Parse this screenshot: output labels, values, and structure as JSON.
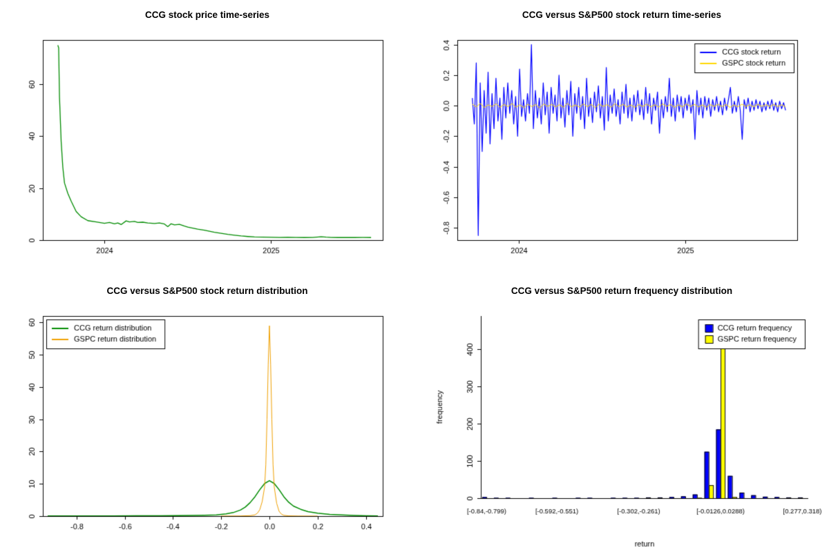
{
  "page": {
    "background": "#ffffff"
  },
  "chart_data": [
    {
      "type": "line",
      "title": "CCG stock price time-series",
      "xlim": [
        2023.63,
        2025.67
      ],
      "ylim": [
        0,
        77
      ],
      "xtick_values": [
        2024,
        2025
      ],
      "xtick_labels": [
        "2024",
        "2025"
      ],
      "ytick_values": [
        0,
        20,
        40,
        60
      ],
      "ytick_labels": [
        "0",
        "20",
        "40",
        "60"
      ],
      "box": true,
      "series": [
        {
          "name": "CCG stock price",
          "color": "#008B00",
          "width": 1.3,
          "points": [
            [
              2023.72,
              75
            ],
            [
              2023.725,
              74
            ],
            [
              2023.73,
              55
            ],
            [
              2023.74,
              38
            ],
            [
              2023.75,
              28
            ],
            [
              2023.76,
              22
            ],
            [
              2023.78,
              18
            ],
            [
              2023.8,
              15
            ],
            [
              2023.83,
              11
            ],
            [
              2023.86,
              9
            ],
            [
              2023.9,
              7.5
            ],
            [
              2023.95,
              7
            ],
            [
              2024.0,
              6.5
            ],
            [
              2024.03,
              6.8
            ],
            [
              2024.06,
              6.3
            ],
            [
              2024.08,
              6.6
            ],
            [
              2024.1,
              6.0
            ],
            [
              2024.13,
              7.4
            ],
            [
              2024.15,
              7.0
            ],
            [
              2024.18,
              7.2
            ],
            [
              2024.2,
              6.8
            ],
            [
              2024.23,
              6.9
            ],
            [
              2024.26,
              6.6
            ],
            [
              2024.3,
              6.4
            ],
            [
              2024.33,
              6.6
            ],
            [
              2024.36,
              6.2
            ],
            [
              2024.38,
              5.2
            ],
            [
              2024.4,
              6.3
            ],
            [
              2024.42,
              5.9
            ],
            [
              2024.45,
              6.1
            ],
            [
              2024.48,
              5.4
            ],
            [
              2024.5,
              5.0
            ],
            [
              2024.53,
              4.6
            ],
            [
              2024.56,
              4.2
            ],
            [
              2024.6,
              3.8
            ],
            [
              2024.63,
              3.4
            ],
            [
              2024.66,
              3.0
            ],
            [
              2024.7,
              2.6
            ],
            [
              2024.74,
              2.2
            ],
            [
              2024.78,
              1.9
            ],
            [
              2024.82,
              1.6
            ],
            [
              2024.86,
              1.4
            ],
            [
              2024.9,
              1.25
            ],
            [
              2024.95,
              1.15
            ],
            [
              2025.0,
              1.1
            ],
            [
              2025.05,
              1.05
            ],
            [
              2025.1,
              1.1
            ],
            [
              2025.15,
              1.05
            ],
            [
              2025.2,
              1.0
            ],
            [
              2025.25,
              1.05
            ],
            [
              2025.3,
              1.3
            ],
            [
              2025.33,
              1.15
            ],
            [
              2025.36,
              1.05
            ],
            [
              2025.4,
              1.0
            ],
            [
              2025.45,
              1.05
            ],
            [
              2025.5,
              1.0
            ],
            [
              2025.55,
              1.02
            ],
            [
              2025.6,
              1.0
            ]
          ]
        }
      ]
    },
    {
      "type": "line",
      "title": "CCG versus S&P500 stock return time-series",
      "xlim": [
        2023.63,
        2025.67
      ],
      "ylim": [
        -0.88,
        0.43
      ],
      "xtick_values": [
        2024,
        2025
      ],
      "xtick_labels": [
        "2024",
        "2025"
      ],
      "ytick_values": [
        -0.8,
        -0.6,
        -0.4,
        -0.2,
        0.0,
        0.2,
        0.4
      ],
      "ytick_labels": [
        "-0.8",
        "-0.6",
        "-0.4",
        "-0.2",
        "0.0",
        "0.2",
        "0.4"
      ],
      "box": true,
      "legend": {
        "position": "top-right"
      },
      "series": [
        {
          "name": "CCG stock return",
          "color": "#0000FF",
          "width": 1.2,
          "x_start": 2023.72,
          "x_end": 2025.6,
          "values": [
            0.05,
            -0.12,
            0.28,
            -0.85,
            0.15,
            -0.3,
            0.1,
            -0.18,
            0.22,
            -0.25,
            0.08,
            -0.15,
            0.18,
            -0.1,
            0.05,
            -0.22,
            0.12,
            -0.08,
            0.15,
            -0.05,
            0.1,
            -0.12,
            0.06,
            -0.2,
            0.24,
            -0.07,
            0.04,
            -0.1,
            0.08,
            -0.05,
            0.4,
            -0.15,
            0.1,
            -0.08,
            0.05,
            -0.12,
            0.15,
            -0.06,
            0.09,
            -0.18,
            0.12,
            -0.05,
            0.07,
            -0.1,
            0.2,
            -0.08,
            0.05,
            -0.14,
            0.1,
            -0.06,
            0.16,
            -0.2,
            0.08,
            -0.05,
            0.12,
            -0.09,
            0.06,
            -0.15,
            0.18,
            -0.07,
            0.05,
            -0.11,
            0.09,
            -0.04,
            0.13,
            -0.08,
            0.06,
            -0.16,
            0.25,
            -0.1,
            0.07,
            -0.05,
            0.11,
            -0.07,
            0.04,
            -0.12,
            0.09,
            -0.05,
            0.14,
            -0.08,
            0.05,
            -0.1,
            0.07,
            -0.04,
            0.1,
            -0.06,
            0.04,
            -0.09,
            0.12,
            -0.05,
            0.08,
            -0.12,
            0.05,
            -0.03,
            0.09,
            -0.18,
            0.04,
            -0.08,
            0.06,
            -0.04,
            0.18,
            -0.07,
            0.05,
            -0.1,
            0.07,
            -0.04,
            0.06,
            -0.08,
            0.05,
            -0.03,
            0.07,
            -0.05,
            0.04,
            -0.22,
            0.1,
            -0.06,
            0.05,
            -0.08,
            0.06,
            -0.03,
            0.05,
            -0.07,
            0.04,
            -0.03,
            0.06,
            -0.04,
            0.03,
            -0.06,
            0.05,
            -0.03,
            0.04,
            0.12,
            -0.05,
            0.03,
            -0.04,
            0.06,
            -0.03,
            -0.22,
            0.04,
            -0.02,
            0.05,
            -0.04,
            0.03,
            -0.03,
            0.04,
            -0.02,
            0.03,
            -0.04,
            0.02,
            -0.03,
            0.03,
            -0.02,
            0.04,
            -0.03,
            0.02,
            -0.04,
            0.03,
            -0.02,
            0.02,
            -0.03
          ]
        },
        {
          "name": "GSPC stock return",
          "color": "#FFD700",
          "width": 1,
          "x_start": 2023.72,
          "x_end": 2025.6,
          "values": [
            0.01,
            -0.008,
            0.015,
            -0.012,
            0.006,
            -0.005,
            0.012,
            -0.01,
            0.008,
            -0.006,
            0.014,
            -0.009,
            0.005,
            -0.012,
            0.01,
            -0.006,
            0.008,
            -0.015,
            0.012,
            -0.005,
            0.009,
            -0.008,
            0.006,
            -0.01,
            0.015,
            -0.007,
            0.005,
            -0.009,
            0.012,
            -0.006,
            0.008,
            -0.012,
            0.01,
            -0.005,
            0.007,
            -0.01,
            0.013,
            -0.006,
            0.009,
            -0.008,
            0.005,
            -0.011,
            0.008,
            -0.005,
            0.01,
            -0.007,
            0.006,
            -0.009,
            0.012,
            -0.005,
            0.008,
            -0.01,
            0.006,
            -0.007,
            0.011,
            -0.005,
            0.009,
            -0.008,
            0.005,
            -0.01,
            0.007,
            -0.005,
            0.009,
            -0.006,
            0.008,
            -0.011,
            0.005,
            -0.007,
            0.01,
            -0.005,
            0.006,
            -0.008,
            0.009,
            -0.005,
            0.007,
            -0.006,
            0.008,
            -0.005,
            0.006,
            -0.007
          ]
        }
      ]
    },
    {
      "type": "line",
      "title": "CCG versus S&P500 stock return distribution",
      "xlim": [
        -0.94,
        0.47
      ],
      "ylim": [
        0,
        62
      ],
      "xtick_values": [
        -0.8,
        -0.6,
        -0.4,
        -0.2,
        0.0,
        0.2,
        0.4
      ],
      "xtick_labels": [
        "-0.8",
        "-0.6",
        "-0.4",
        "-0.2",
        "0.0",
        "0.2",
        "0.4"
      ],
      "ytick_values": [
        0,
        10,
        20,
        30,
        40,
        50,
        60
      ],
      "ytick_labels": [
        "0",
        "10",
        "20",
        "30",
        "40",
        "50",
        "60"
      ],
      "box": true,
      "legend": {
        "position": "top-left"
      },
      "series": [
        {
          "name": "CCG return distribution",
          "color": "#008B00",
          "width": 1.5,
          "points": [
            [
              -0.92,
              0.03
            ],
            [
              -0.85,
              0.04
            ],
            [
              -0.75,
              0.06
            ],
            [
              -0.65,
              0.08
            ],
            [
              -0.55,
              0.1
            ],
            [
              -0.45,
              0.13
            ],
            [
              -0.38,
              0.16
            ],
            [
              -0.32,
              0.2
            ],
            [
              -0.27,
              0.28
            ],
            [
              -0.22,
              0.4
            ],
            [
              -0.18,
              0.7
            ],
            [
              -0.15,
              1.1
            ],
            [
              -0.12,
              1.9
            ],
            [
              -0.1,
              2.8
            ],
            [
              -0.08,
              4.2
            ],
            [
              -0.06,
              6.0
            ],
            [
              -0.04,
              8.2
            ],
            [
              -0.02,
              10.1
            ],
            [
              0.0,
              11.0
            ],
            [
              0.02,
              10.1
            ],
            [
              0.04,
              8.2
            ],
            [
              0.06,
              6.0
            ],
            [
              0.08,
              4.3
            ],
            [
              0.1,
              3.1
            ],
            [
              0.13,
              2.1
            ],
            [
              0.16,
              1.4
            ],
            [
              0.2,
              0.9
            ],
            [
              0.25,
              0.55
            ],
            [
              0.3,
              0.35
            ],
            [
              0.35,
              0.22
            ],
            [
              0.4,
              0.13
            ],
            [
              0.45,
              0.07
            ]
          ]
        },
        {
          "name": "GSPC return distribution",
          "color": "#F0A000",
          "width": 1,
          "points": [
            [
              -0.2,
              0.02
            ],
            [
              -0.12,
              0.05
            ],
            [
              -0.08,
              0.15
            ],
            [
              -0.06,
              0.4
            ],
            [
              -0.05,
              0.9
            ],
            [
              -0.04,
              2.0
            ],
            [
              -0.03,
              4.5
            ],
            [
              -0.02,
              9.0
            ],
            [
              -0.015,
              16
            ],
            [
              -0.01,
              30
            ],
            [
              -0.005,
              47
            ],
            [
              0.0,
              59
            ],
            [
              0.005,
              47
            ],
            [
              0.01,
              30
            ],
            [
              0.015,
              16
            ],
            [
              0.02,
              9
            ],
            [
              0.03,
              4
            ],
            [
              0.04,
              1.5
            ],
            [
              0.05,
              0.6
            ],
            [
              0.06,
              0.25
            ],
            [
              0.08,
              0.08
            ],
            [
              0.12,
              0.03
            ],
            [
              0.2,
              0.01
            ]
          ]
        }
      ]
    },
    {
      "type": "hist",
      "title": "CCG versus S&P500 return frequency distribution",
      "xlabel": "return",
      "ylabel": "frequency",
      "ylim": [
        0,
        490
      ],
      "ytick_values": [
        0,
        100,
        200,
        300,
        400
      ],
      "ytick_labels": [
        "0",
        "100",
        "200",
        "300",
        "400"
      ],
      "bins": 28,
      "tick_bins": [
        0,
        6,
        13,
        20,
        27
      ],
      "tick_labels": [
        "[-0.84,-0.799)",
        "[-0.592,-0.551)",
        "[-0.302,-0.261)",
        "[-0.0126,0.0288)",
        "[0.277,0.318)"
      ],
      "box": false,
      "legend": {
        "position": "top-right"
      },
      "series": [
        {
          "name": "CCG return frequency",
          "color": "#0000FF",
          "values": [
            3,
            1,
            1,
            0,
            1,
            0,
            1,
            0,
            1,
            1,
            0,
            1,
            1,
            1,
            2,
            2,
            3,
            5,
            10,
            125,
            185,
            60,
            15,
            8,
            4,
            3,
            2,
            2
          ]
        },
        {
          "name": "GSPC return frequency",
          "color": "#FFFF00",
          "values": [
            0,
            0,
            0,
            0,
            0,
            0,
            0,
            0,
            0,
            0,
            0,
            0,
            0,
            0,
            0,
            0,
            0,
            0,
            1,
            35,
            480,
            3,
            0,
            0,
            0,
            0,
            0,
            0
          ]
        }
      ]
    }
  ]
}
